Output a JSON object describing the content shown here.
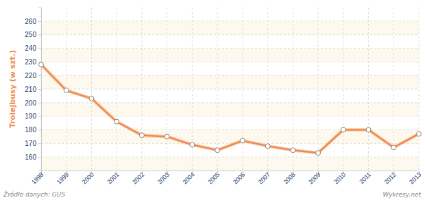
{
  "chart_data": {
    "type": "line",
    "y_label": "Trolejbusy (w szt.)",
    "annotations": [
      "Źródło danych: GUS",
      "Wykresy.net"
    ],
    "x": [
      1998,
      1999,
      2000,
      2001,
      2002,
      2003,
      2004,
      2005,
      2006,
      2007,
      2008,
      2009,
      2010,
      2011,
      2012,
      2013
    ],
    "values": [
      228,
      209,
      203,
      186,
      176,
      175,
      169,
      165,
      172,
      168,
      165,
      163,
      180,
      180,
      167,
      177
    ],
    "color": "#f08a4b",
    "marker": "circle",
    "line_style": "solid",
    "xlim": [
      1998,
      2013
    ],
    "xticks": [
      1998,
      1999,
      2000,
      2001,
      2002,
      2003,
      2004,
      2005,
      2006,
      2007,
      2008,
      2009,
      2010,
      2011,
      2012,
      2013
    ],
    "ylim": [
      150,
      270
    ],
    "yticks": [
      160,
      170,
      180,
      190,
      200,
      210,
      220,
      230,
      240,
      250,
      260
    ],
    "grid": true
  }
}
